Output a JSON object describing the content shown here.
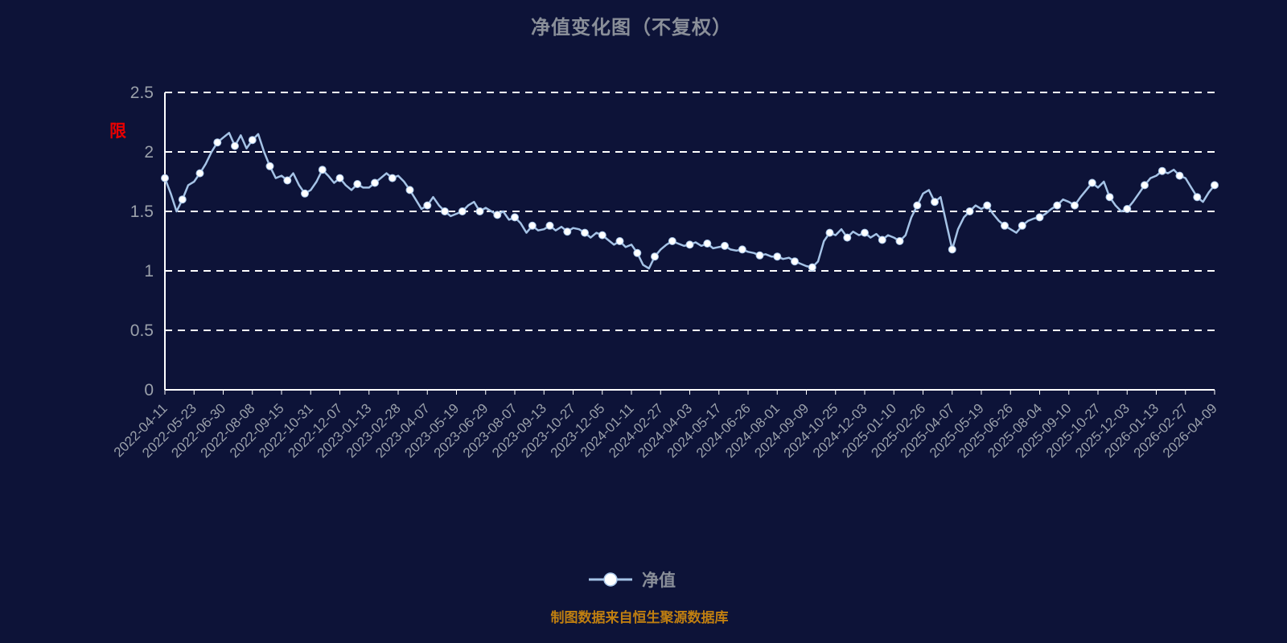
{
  "title": "净值变化图（不复权）",
  "restricted_label": "限",
  "legend": {
    "label": "净值"
  },
  "footer": {
    "text": "制图数据来自恒生聚源数据库"
  },
  "chart_data": {
    "type": "line",
    "title": "净值变化图（不复权）",
    "series_name": "净值",
    "legend_position": "bottom",
    "grid": "horizontal dashed white lines",
    "ylim": [
      0,
      2.5
    ],
    "yticks": [
      0,
      0.5,
      1,
      1.5,
      2,
      2.5
    ],
    "line_color": "#a5c3e6",
    "marker_color": "#ffffff",
    "axis_color": "#ffffff",
    "grid_color": "#ffffff",
    "text_color": "#9aa0aa",
    "title_color": "#8a8f99",
    "footer_color": "#c07f10",
    "restricted_color": "#e80000",
    "background": "#0d1338",
    "categories": [
      "2022-04-11",
      "2022-05-23",
      "2022-06-30",
      "2022-08-08",
      "2022-09-15",
      "2022-10-31",
      "2022-12-07",
      "2023-01-13",
      "2023-02-28",
      "2023-04-07",
      "2023-05-19",
      "2023-06-29",
      "2023-08-07",
      "2023-09-13",
      "2023-10-27",
      "2023-12-05",
      "2024-01-11",
      "2024-02-27",
      "2024-04-03",
      "2024-05-17",
      "2024-06-26",
      "2024-08-01",
      "2024-09-09",
      "2024-10-25",
      "2024-12-03",
      "2025-01-10",
      "2025-02-26",
      "2025-04-07",
      "2025-05-19",
      "2025-06-26",
      "2025-08-04",
      "2025-09-10",
      "2025-10-27",
      "2025-12-03",
      "2026-01-13",
      "2026-02-27",
      "2026-04-09"
    ],
    "values": [
      1.78,
      1.65,
      1.5,
      1.6,
      1.72,
      1.75,
      1.82,
      1.9,
      2.0,
      2.08,
      2.12,
      2.16,
      2.05,
      2.14,
      2.03,
      2.1,
      2.15,
      2.0,
      1.88,
      1.78,
      1.8,
      1.76,
      1.82,
      1.72,
      1.65,
      1.68,
      1.75,
      1.85,
      1.8,
      1.74,
      1.78,
      1.72,
      1.68,
      1.73,
      1.7,
      1.7,
      1.74,
      1.78,
      1.82,
      1.78,
      1.8,
      1.75,
      1.68,
      1.6,
      1.52,
      1.55,
      1.62,
      1.55,
      1.5,
      1.46,
      1.48,
      1.5,
      1.55,
      1.58,
      1.5,
      1.53,
      1.5,
      1.47,
      1.5,
      1.43,
      1.45,
      1.4,
      1.32,
      1.38,
      1.34,
      1.35,
      1.38,
      1.34,
      1.37,
      1.33,
      1.36,
      1.35,
      1.32,
      1.28,
      1.32,
      1.3,
      1.26,
      1.22,
      1.25,
      1.2,
      1.22,
      1.15,
      1.05,
      1.02,
      1.12,
      1.18,
      1.22,
      1.25,
      1.23,
      1.21,
      1.22,
      1.24,
      1.21,
      1.23,
      1.19,
      1.2,
      1.21,
      1.18,
      1.17,
      1.18,
      1.16,
      1.15,
      1.13,
      1.14,
      1.12,
      1.12,
      1.1,
      1.11,
      1.08,
      1.06,
      1.04,
      1.03,
      1.08,
      1.25,
      1.32,
      1.3,
      1.35,
      1.28,
      1.33,
      1.3,
      1.32,
      1.28,
      1.31,
      1.26,
      1.3,
      1.28,
      1.25,
      1.3,
      1.45,
      1.55,
      1.65,
      1.68,
      1.58,
      1.62,
      1.4,
      1.18,
      1.35,
      1.45,
      1.5,
      1.55,
      1.52,
      1.55,
      1.48,
      1.42,
      1.38,
      1.35,
      1.32,
      1.38,
      1.42,
      1.44,
      1.45,
      1.48,
      1.52,
      1.55,
      1.6,
      1.58,
      1.55,
      1.62,
      1.68,
      1.74,
      1.7,
      1.75,
      1.62,
      1.55,
      1.5,
      1.52,
      1.58,
      1.65,
      1.72,
      1.78,
      1.8,
      1.84,
      1.82,
      1.85,
      1.8,
      1.78,
      1.7,
      1.62,
      1.58,
      1.66,
      1.72
    ]
  }
}
